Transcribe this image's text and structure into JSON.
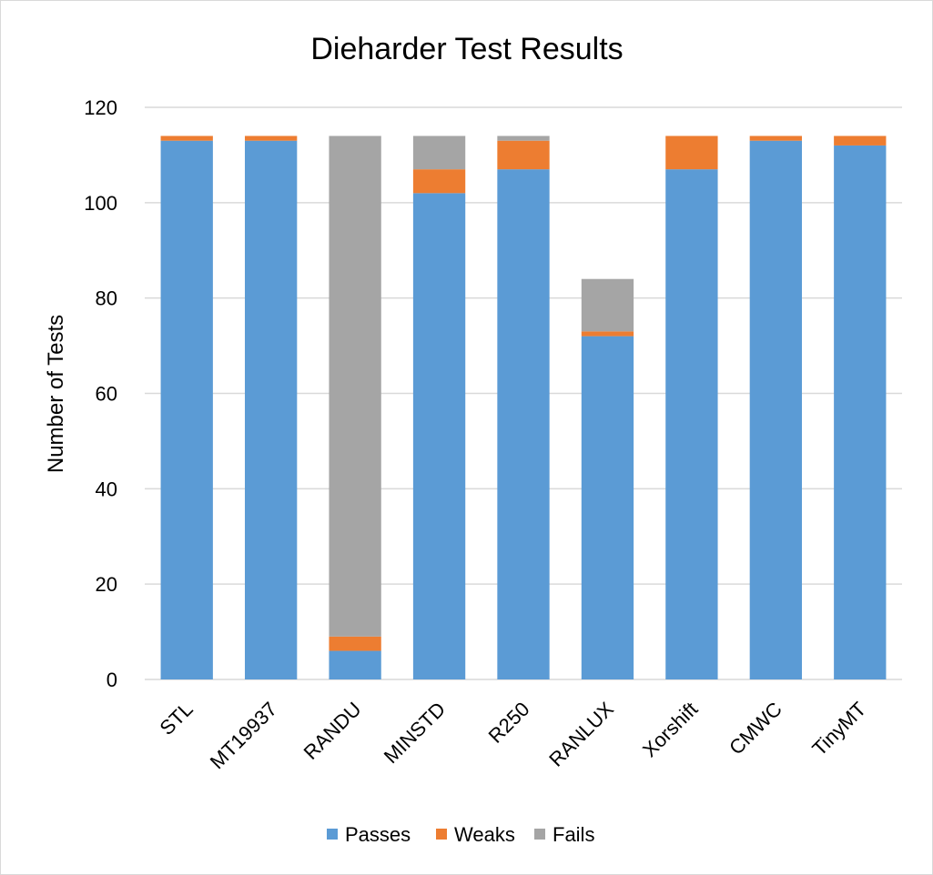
{
  "chart_data": {
    "type": "bar",
    "stacked": true,
    "title": "Dieharder Test Results",
    "xlabel": "",
    "ylabel": "Number of Tests",
    "ylim": [
      0,
      120
    ],
    "yticks": [
      0,
      20,
      40,
      60,
      80,
      100,
      120
    ],
    "grid": true,
    "legend_position": "bottom",
    "categories": [
      "STL",
      "MT19937",
      "RANDU",
      "MINSTD",
      "R250",
      "RANLUX",
      "Xorshift",
      "CMWC",
      "TinyMT"
    ],
    "series": [
      {
        "name": "Passes",
        "color": "#5b9bd5",
        "values": [
          113,
          113,
          6,
          102,
          107,
          72,
          107,
          113,
          112
        ]
      },
      {
        "name": "Weaks",
        "color": "#ed7d31",
        "values": [
          1,
          1,
          3,
          5,
          6,
          1,
          7,
          1,
          2
        ]
      },
      {
        "name": "Fails",
        "color": "#a5a5a5",
        "values": [
          0,
          0,
          105,
          7,
          1,
          11,
          0,
          0,
          0
        ]
      }
    ]
  }
}
